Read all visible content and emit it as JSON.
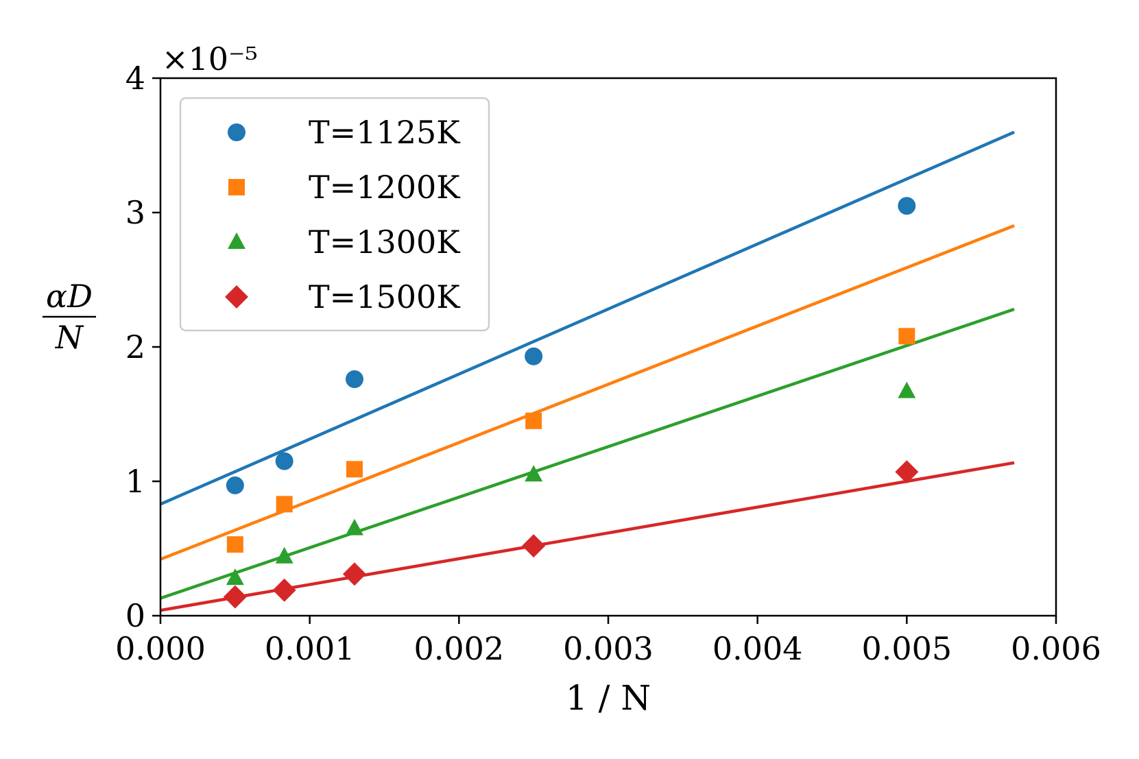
{
  "chart_data": {
    "type": "scatter",
    "title": "",
    "xlabel": "1 / N",
    "ylabel": {
      "numerator": "αD",
      "denominator": "N"
    },
    "y_scale_label": "×10⁻⁵",
    "xlim": [
      0.0,
      0.006
    ],
    "ylim": [
      0,
      4
    ],
    "x_ticks": [
      0.0,
      0.001,
      0.002,
      0.003,
      0.004,
      0.005,
      0.006
    ],
    "x_tick_labels": [
      "0.000",
      "0.001",
      "0.002",
      "0.003",
      "0.004",
      "0.005",
      "0.006"
    ],
    "y_ticks": [
      0,
      1,
      2,
      3,
      4
    ],
    "y_tick_labels": [
      "0",
      "1",
      "2",
      "3",
      "4"
    ],
    "grid": false,
    "legend_position": "top-left",
    "fit_x_range": [
      0.0,
      0.00572
    ],
    "series": [
      {
        "name": "T=1125K",
        "marker": "circle",
        "color": "#1f77b4",
        "x": [
          0.0005,
          0.00083,
          0.0013,
          0.0025,
          0.005
        ],
        "y": [
          0.97,
          1.15,
          1.76,
          1.93,
          3.05
        ],
        "fit": {
          "intercept": 0.83,
          "slope": 484
        }
      },
      {
        "name": "T=1200K",
        "marker": "square",
        "color": "#ff7f0e",
        "x": [
          0.0005,
          0.00083,
          0.0013,
          0.0025,
          0.005
        ],
        "y": [
          0.53,
          0.83,
          1.09,
          1.45,
          2.08
        ],
        "fit": {
          "intercept": 0.42,
          "slope": 434
        }
      },
      {
        "name": "T=1300K",
        "marker": "triangle",
        "color": "#2ca02c",
        "x": [
          0.0005,
          0.00083,
          0.0013,
          0.0025,
          0.005
        ],
        "y": [
          0.28,
          0.44,
          0.65,
          1.05,
          1.67
        ],
        "fit": {
          "intercept": 0.13,
          "slope": 376
        }
      },
      {
        "name": "T=1500K",
        "marker": "diamond",
        "color": "#d62728",
        "x": [
          0.0005,
          0.00083,
          0.0013,
          0.0025,
          0.005
        ],
        "y": [
          0.14,
          0.19,
          0.31,
          0.52,
          1.07
        ],
        "fit": {
          "intercept": 0.04,
          "slope": 192
        }
      }
    ]
  }
}
